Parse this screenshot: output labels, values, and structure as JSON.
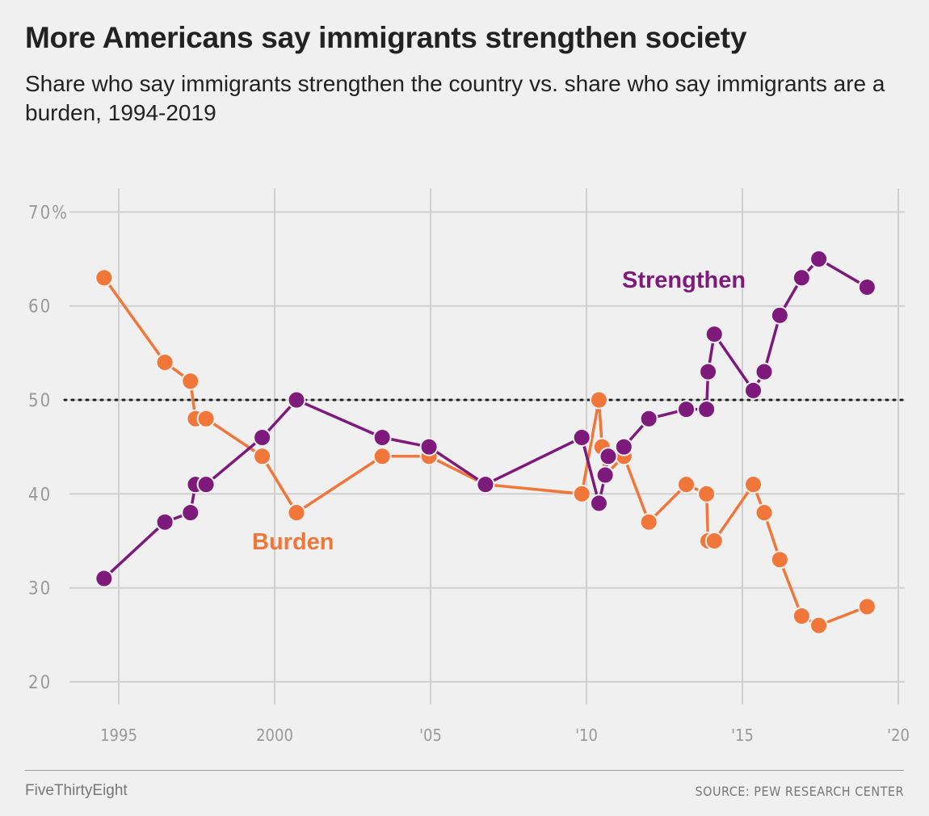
{
  "chart_data": {
    "type": "line",
    "title": "More Americans say immigrants strengthen society",
    "subtitle": "Share who say immigrants strengthen the country vs. share who say immigrants are a burden, 1994-2019",
    "xlim": [
      1993.5,
      2020.3
    ],
    "ylim": [
      20,
      72
    ],
    "x_ticks": [
      {
        "v": 1995,
        "label": "1995"
      },
      {
        "v": 2000,
        "label": "2000"
      },
      {
        "v": 2005,
        "label": "'05"
      },
      {
        "v": 2010,
        "label": "'10"
      },
      {
        "v": 2015,
        "label": "'15"
      },
      {
        "v": 2020,
        "label": "'20"
      }
    ],
    "y_ticks": [
      {
        "v": 20,
        "label": "20"
      },
      {
        "v": 30,
        "label": "30"
      },
      {
        "v": 40,
        "label": "40"
      },
      {
        "v": 50,
        "label": "50"
      },
      {
        "v": 60,
        "label": "60"
      },
      {
        "v": 70,
        "label": "70%"
      }
    ],
    "reference_line": 50,
    "grid": true,
    "series": [
      {
        "name": "Strengthen",
        "color": "#7d1a7b",
        "x": [
          1994.53,
          1996.48,
          1997.3,
          1997.46,
          1997.8,
          1999.6,
          2000.7,
          2003.45,
          2004.95,
          2006.76,
          2009.85,
          2010.4,
          2010.6,
          2010.7,
          2011.2,
          2012.0,
          2013.2,
          2013.85,
          2013.9,
          2014.1,
          2015.35,
          2015.7,
          2016.2,
          2016.9,
          2017.45,
          2019.0
        ],
        "values": [
          31,
          37,
          38,
          41,
          41,
          46,
          50,
          46,
          45,
          41,
          46,
          39,
          42,
          44,
          45,
          48,
          49,
          49,
          53,
          57,
          51,
          53,
          59,
          63,
          65,
          62
        ]
      },
      {
        "name": "Burden",
        "color": "#f07639",
        "x": [
          1994.53,
          1996.48,
          1997.3,
          1997.46,
          1997.8,
          1999.6,
          2000.7,
          2003.45,
          2004.95,
          2006.76,
          2009.85,
          2010.4,
          2010.5,
          2010.6,
          2011.2,
          2012.0,
          2013.2,
          2013.85,
          2013.9,
          2014.1,
          2015.35,
          2015.7,
          2016.2,
          2016.9,
          2017.45,
          2019.0
        ],
        "values": [
          63,
          54,
          52,
          48,
          48,
          44,
          38,
          44,
          44,
          41,
          40,
          50,
          45,
          42,
          44,
          37,
          41,
          40,
          35,
          35,
          41,
          38,
          33,
          27,
          26,
          28
        ]
      }
    ]
  },
  "footer": {
    "brand": "FiveThirtyEight",
    "source": "SOURCE: PEW RESEARCH CENTER"
  }
}
